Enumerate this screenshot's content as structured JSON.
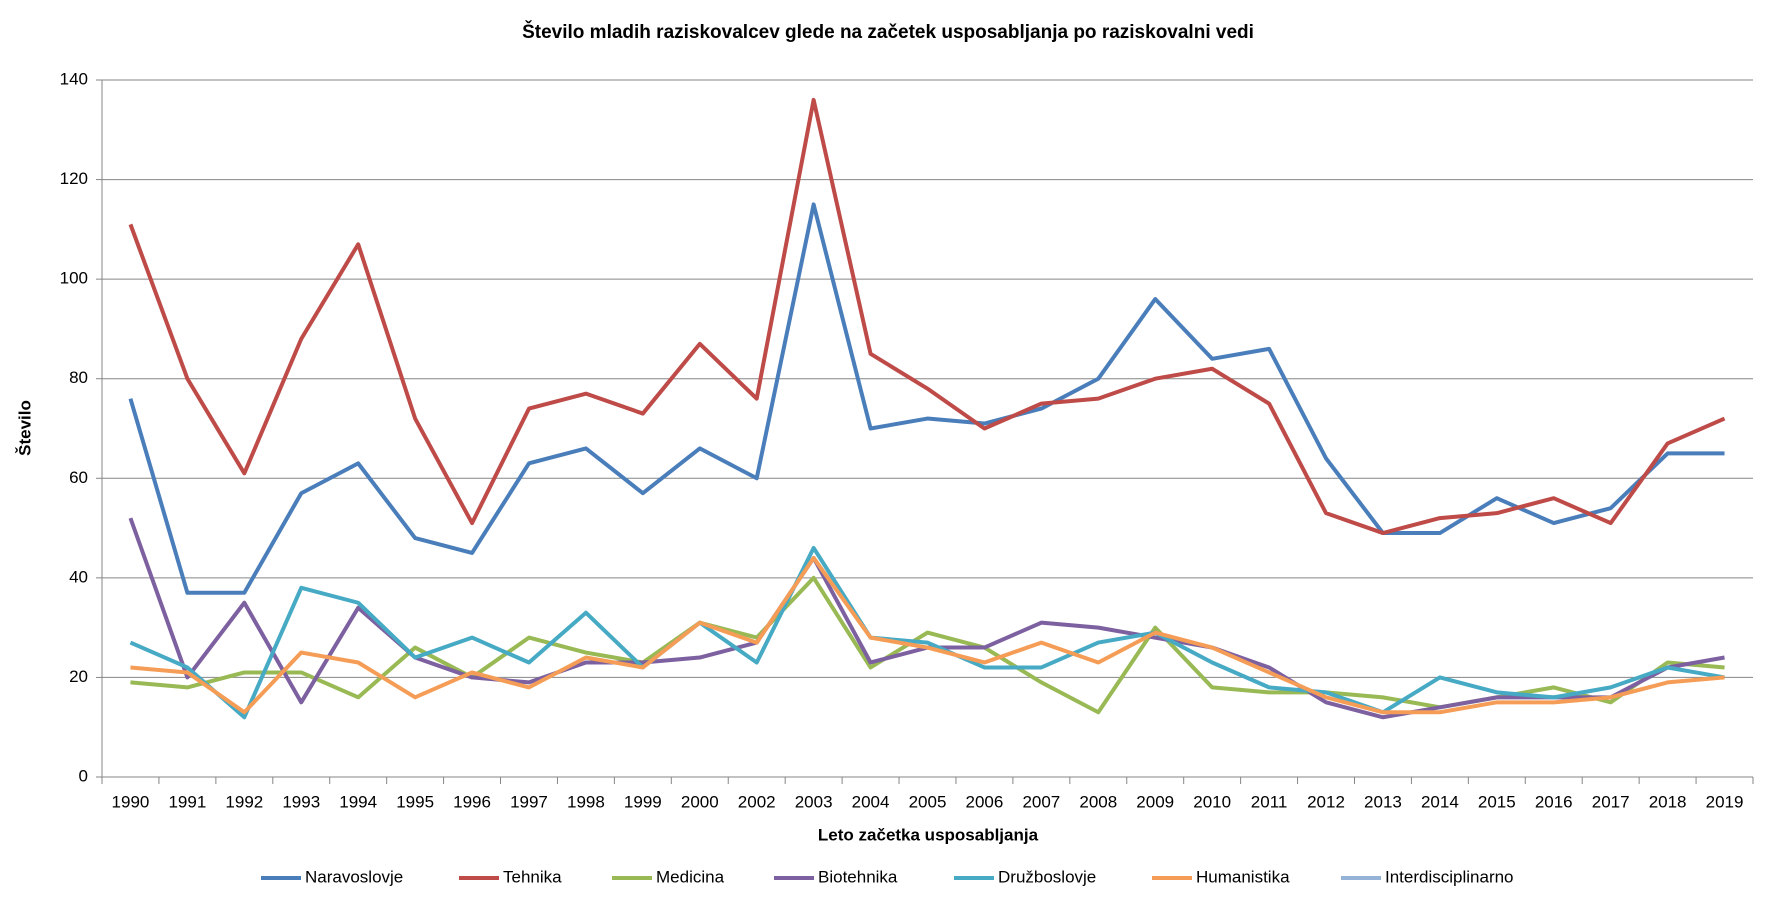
{
  "chart_data": {
    "type": "line",
    "title": "Število mladih raziskovalcev glede na začetek usposabljanja  po raziskovalni vedi",
    "x_label": "Leto začetka usposabljanja",
    "y_label": "Število",
    "categories": [
      "1990",
      "1991",
      "1992",
      "1993",
      "1994",
      "1995",
      "1996",
      "1997",
      "1998",
      "1999",
      "2000",
      "2002",
      "2003",
      "2004",
      "2005",
      "2006",
      "2007",
      "2008",
      "2009",
      "2010",
      "2011",
      "2012",
      "2013",
      "2014",
      "2015",
      "2016",
      "2017",
      "2018",
      "2019"
    ],
    "series": [
      {
        "name": "Naravoslovje",
        "color": "#4a7ebb",
        "values": [
          76,
          37,
          37,
          57,
          63,
          48,
          45,
          63,
          66,
          57,
          66,
          60,
          115,
          70,
          72,
          71,
          74,
          80,
          96,
          84,
          86,
          64,
          49,
          49,
          56,
          51,
          54,
          65,
          65
        ]
      },
      {
        "name": "Tehnika",
        "color": "#be4b48",
        "values": [
          111,
          80,
          61,
          88,
          107,
          72,
          51,
          74,
          77,
          73,
          87,
          76,
          136,
          85,
          78,
          70,
          75,
          76,
          80,
          82,
          75,
          53,
          49,
          52,
          53,
          56,
          51,
          67,
          72
        ]
      },
      {
        "name": "Medicina",
        "color": "#98b954",
        "values": [
          19,
          18,
          21,
          21,
          16,
          26,
          20,
          28,
          25,
          23,
          31,
          28,
          40,
          22,
          29,
          26,
          19,
          13,
          30,
          18,
          17,
          17,
          16,
          14,
          16,
          18,
          15,
          23,
          22
        ]
      },
      {
        "name": "Biotehnika",
        "color": "#7d60a0",
        "values": [
          52,
          20,
          35,
          15,
          34,
          24,
          20,
          19,
          23,
          23,
          24,
          27,
          44,
          23,
          26,
          26,
          31,
          30,
          28,
          26,
          22,
          15,
          12,
          14,
          16,
          16,
          16,
          22,
          24
        ]
      },
      {
        "name": "Družboslovje",
        "color": "#46aac5",
        "values": [
          27,
          22,
          12,
          38,
          35,
          24,
          28,
          23,
          33,
          22,
          31,
          23,
          46,
          28,
          27,
          22,
          22,
          27,
          29,
          23,
          18,
          17,
          13,
          20,
          17,
          16,
          18,
          22,
          20
        ]
      },
      {
        "name": "Humanistika",
        "color": "#f59d56",
        "values": [
          22,
          21,
          13,
          25,
          23,
          16,
          21,
          18,
          24,
          22,
          31,
          27,
          44,
          28,
          26,
          23,
          27,
          23,
          29,
          26,
          21,
          16,
          13,
          13,
          15,
          15,
          16,
          19,
          20
        ]
      },
      {
        "name": "Interdisciplinarno",
        "color": "#95b3d7",
        "values": [
          null,
          null,
          null,
          null,
          null,
          null,
          null,
          null,
          null,
          null,
          null,
          null,
          null,
          null,
          null,
          null,
          null,
          null,
          null,
          null,
          null,
          null,
          null,
          null,
          null,
          null,
          null,
          null,
          null
        ]
      }
    ],
    "ylim": [
      0,
      140
    ],
    "yticks": [
      0,
      20,
      40,
      60,
      80,
      100,
      120,
      140
    ],
    "grid": true,
    "legend": "bottom"
  }
}
